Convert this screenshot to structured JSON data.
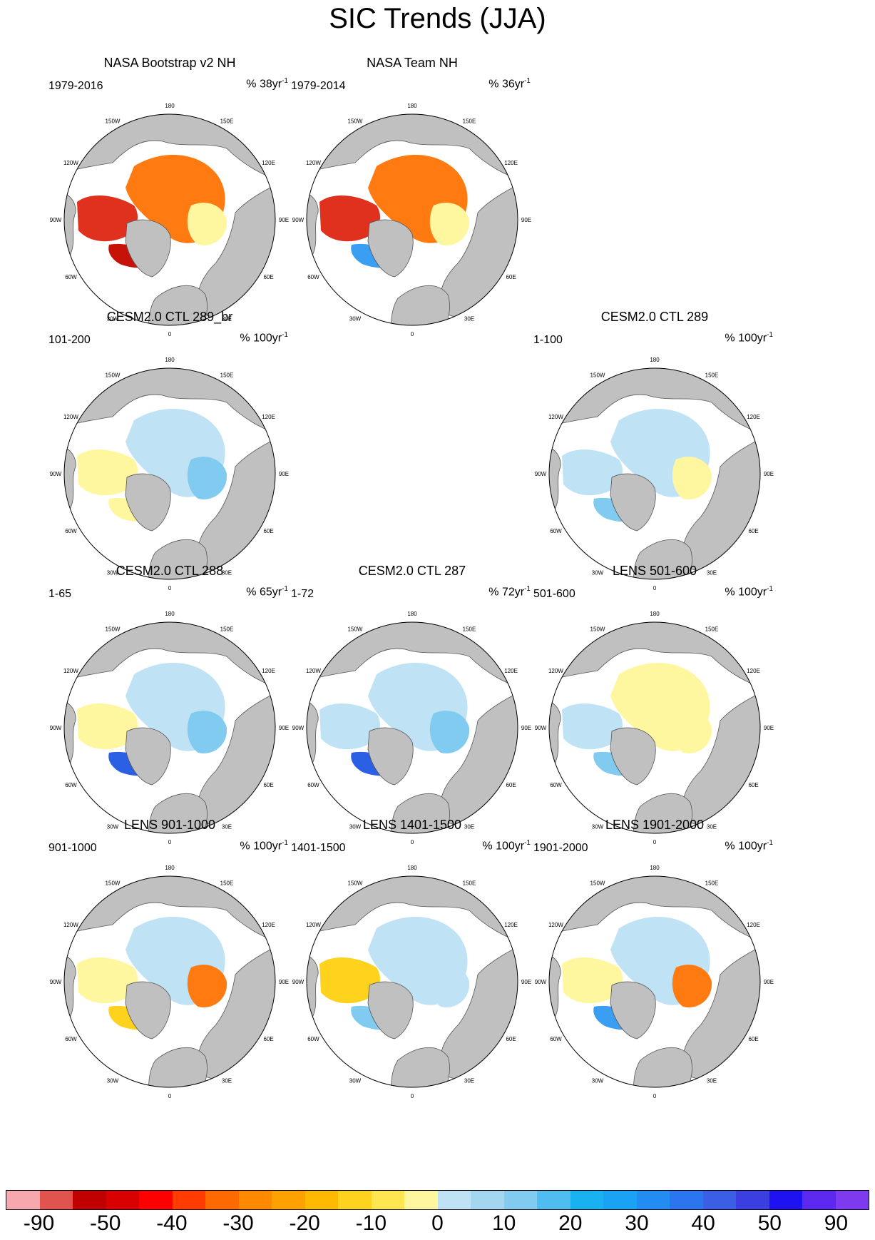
{
  "title": "SIC Trends (JJA)",
  "lon_labels": [
    "180",
    "150E",
    "120E",
    "90E",
    "60E",
    "30E",
    "0",
    "30W",
    "60W",
    "90W",
    "120W",
    "150W"
  ],
  "panels": [
    {
      "title": "NASA Bootstrap v2 NH",
      "period": "1979-2016",
      "units_base": "% 38yr",
      "units_exp": "-1"
    },
    {
      "title": "NASA Team NH",
      "period": "1979-2014",
      "units_base": "% 36yr",
      "units_exp": "-1"
    },
    {
      "title": "CESM2.0 CTL 289_br",
      "period": "101-200",
      "units_base": "% 100yr",
      "units_exp": "-1"
    },
    {
      "title": "CESM2.0 CTL 289",
      "period": "1-100",
      "units_base": "% 100yr",
      "units_exp": "-1"
    },
    {
      "title": "CESM2.0 CTL 288",
      "period": "1-65",
      "units_base": "% 65yr",
      "units_exp": "-1"
    },
    {
      "title": "CESM2.0 CTL 287",
      "period": "1-72",
      "units_base": "% 72yr",
      "units_exp": "-1"
    },
    {
      "title": "LENS 501-600",
      "period": "501-600",
      "units_base": "% 100yr",
      "units_exp": "-1"
    },
    {
      "title": "LENS 901-1000",
      "period": "901-1000",
      "units_base": "% 100yr",
      "units_exp": "-1"
    },
    {
      "title": "LENS 1401-1500",
      "period": "1401-1500",
      "units_base": "% 100yr",
      "units_exp": "-1"
    },
    {
      "title": "LENS 1901-2000",
      "period": "1901-2000",
      "units_base": "% 100yr",
      "units_exp": "-1"
    }
  ],
  "colorbar": {
    "colors": [
      "#f7a8ae",
      "#e0534f",
      "#c00000",
      "#d90000",
      "#ff0000",
      "#ff3b00",
      "#ff6a00",
      "#ff8a00",
      "#ffa200",
      "#ffba00",
      "#ffd21e",
      "#ffe650",
      "#fff7a0",
      "#bfe3f5",
      "#a3d7f0",
      "#80cbef",
      "#4fbdf0",
      "#18b2f3",
      "#1aa2f4",
      "#238cf3",
      "#2b76ee",
      "#3a5fe4",
      "#3c3fe0",
      "#1e12f0",
      "#5a28ee",
      "#7d3aee"
    ],
    "labels": [
      "-90",
      "-50",
      "-40",
      "-30",
      "-20",
      "-10",
      "0",
      "10",
      "20",
      "30",
      "40",
      "50",
      "90"
    ]
  }
}
